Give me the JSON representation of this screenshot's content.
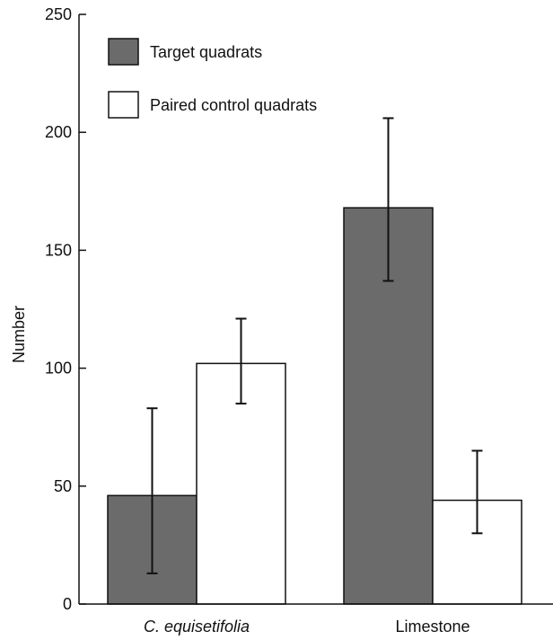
{
  "chart_data": {
    "type": "bar",
    "title": "",
    "xlabel": "",
    "ylabel": "Number",
    "ylim": [
      0,
      250
    ],
    "yticks": [
      0,
      50,
      100,
      150,
      200,
      250
    ],
    "grid": false,
    "legend_position": "top-left",
    "categories": [
      "C. equisetifolia",
      "Limestone"
    ],
    "series": [
      {
        "name": "Target quadrats",
        "color": "#6b6b6b",
        "values": [
          46,
          168
        ],
        "error_low": [
          13,
          137
        ],
        "error_high": [
          83,
          206
        ]
      },
      {
        "name": "Paired control quadrats",
        "color": "#ffffff",
        "values": [
          102,
          44
        ],
        "error_low": [
          85,
          30
        ],
        "error_high": [
          121,
          65
        ]
      }
    ]
  }
}
